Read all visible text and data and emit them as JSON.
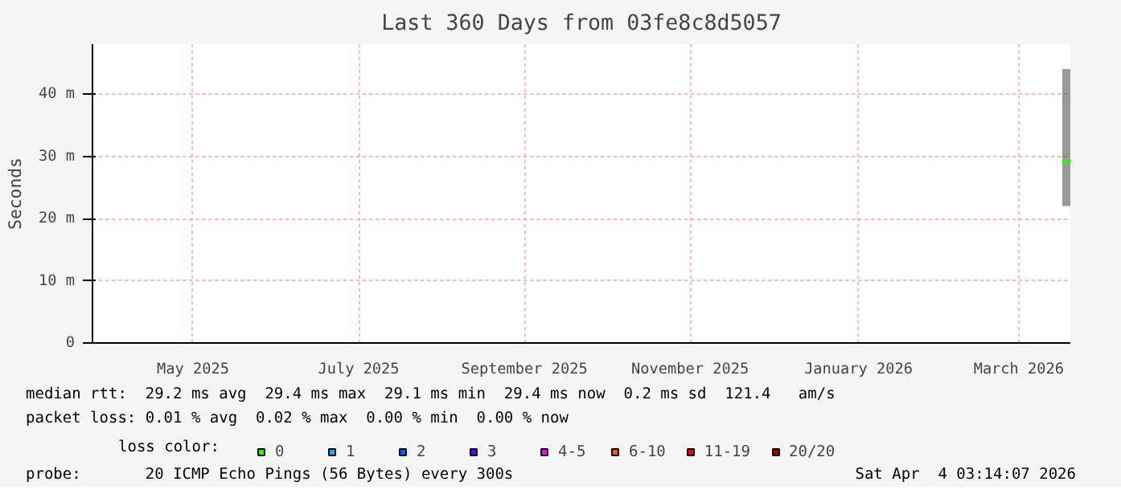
{
  "chart_data": {
    "type": "line",
    "title": "Last 360 Days from 03fe8c8d5057",
    "ylabel": "Seconds",
    "xlim": [
      "2025-04-09",
      "2026-04-04"
    ],
    "xticks": [
      {
        "value": "2025-05-16",
        "label": "May 2025"
      },
      {
        "value": "2025-07-16",
        "label": "July 2025"
      },
      {
        "value": "2025-09-15",
        "label": "September 2025"
      },
      {
        "value": "2025-11-15",
        "label": "November 2025"
      },
      {
        "value": "2026-01-16",
        "label": "January 2026"
      },
      {
        "value": "2026-03-16",
        "label": "March 2026"
      }
    ],
    "ylim": [
      0,
      48
    ],
    "yticks": [
      {
        "value": 0,
        "label": "0"
      },
      {
        "value": 10,
        "label": "10 m"
      },
      {
        "value": 20,
        "label": "20 m"
      },
      {
        "value": 30,
        "label": "30 m"
      },
      {
        "value": 40,
        "label": "40 m"
      }
    ],
    "grid": true,
    "legend": "bottom",
    "legend_title": "loss color:",
    "series": [
      {
        "name": "0",
        "color": "#26ff00",
        "x": [
          "2026-04-01",
          "2026-04-02",
          "2026-04-03",
          "2026-04-04"
        ],
        "values": [
          29.2,
          29.1,
          29.2,
          29.4
        ],
        "lower": [
          22,
          22,
          22,
          22
        ],
        "upper": [
          44,
          44,
          44,
          44
        ]
      },
      {
        "name": "1",
        "color": "#00b8ff",
        "values": [
          null
        ]
      },
      {
        "name": "2",
        "color": "#0059ff",
        "values": [
          null
        ]
      },
      {
        "name": "3",
        "color": "#5e00ff",
        "values": [
          null
        ]
      },
      {
        "name": "4-5",
        "color": "#ff00ff",
        "values": [
          null
        ]
      },
      {
        "name": "6-10",
        "color": "#ff5500",
        "values": [
          null
        ]
      },
      {
        "name": "11-19",
        "color": "#ff0000",
        "values": [
          null
        ]
      },
      {
        "name": "20/20",
        "color": "#a10000",
        "values": [
          null
        ]
      }
    ],
    "annotations": [
      "median rtt:  29.2 ms avg  29.4 ms max  29.1 ms min  29.4 ms now  0.2 ms sd  121.4   am/s",
      "packet loss: 0.01 % avg  0.02 % max  0.00 % min  0.00 % now",
      "probe:       20 ICMP Echo Pings (56 Bytes) every 300s",
      "Sat Apr  4 03:14:07 2026"
    ]
  }
}
